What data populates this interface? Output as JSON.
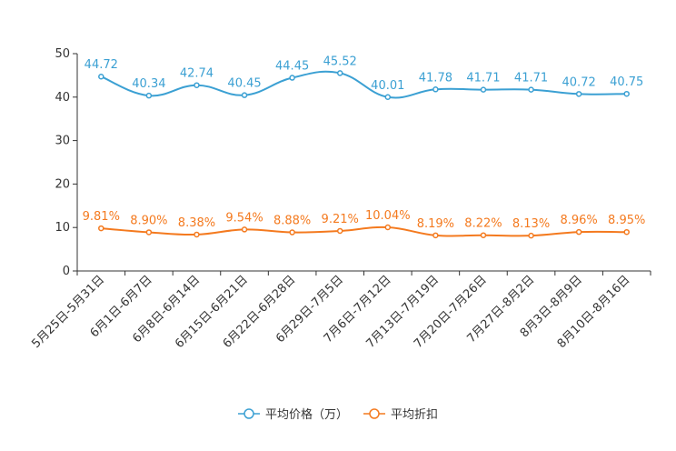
{
  "chart_data": {
    "type": "line",
    "title": "",
    "xlabel": "",
    "ylabel": "",
    "ylim": [
      0,
      50
    ],
    "yticks": [
      0,
      10,
      20,
      30,
      40,
      50
    ],
    "grid": false,
    "legend_position": "bottom-center",
    "categories": [
      "5月25日-5月31日",
      "6月1日-6月7日",
      "6月8日-6月14日",
      "6月15日-6月21日",
      "6月22日-6月28日",
      "6月29日-7月5日",
      "7月6日-7月12日",
      "7月13日-7月19日",
      "7月20日-7月26日",
      "7月27日-8月2日",
      "8月3日-8月9日",
      "8月10日-8月16日"
    ],
    "series": [
      {
        "name": "平均价格（万）",
        "color": "#3ba0d3",
        "values": [
          44.72,
          40.34,
          42.74,
          40.45,
          44.45,
          45.52,
          40.01,
          41.78,
          41.71,
          41.71,
          40.72,
          40.75
        ],
        "labels": [
          "44.72",
          "40.34",
          "42.74",
          "40.45",
          "44.45",
          "45.52",
          "40.01",
          "41.78",
          "41.71",
          "41.71",
          "40.72",
          "40.75"
        ]
      },
      {
        "name": "平均折扣",
        "color": "#f47a1f",
        "values": [
          9.81,
          8.9,
          8.38,
          9.54,
          8.88,
          9.21,
          10.04,
          8.19,
          8.22,
          8.13,
          8.96,
          8.95
        ],
        "labels": [
          "9.81%",
          "8.90%",
          "8.38%",
          "9.54%",
          "8.88%",
          "9.21%",
          "10.04%",
          "8.19%",
          "8.22%",
          "8.13%",
          "8.96%",
          "8.95%"
        ]
      }
    ]
  }
}
